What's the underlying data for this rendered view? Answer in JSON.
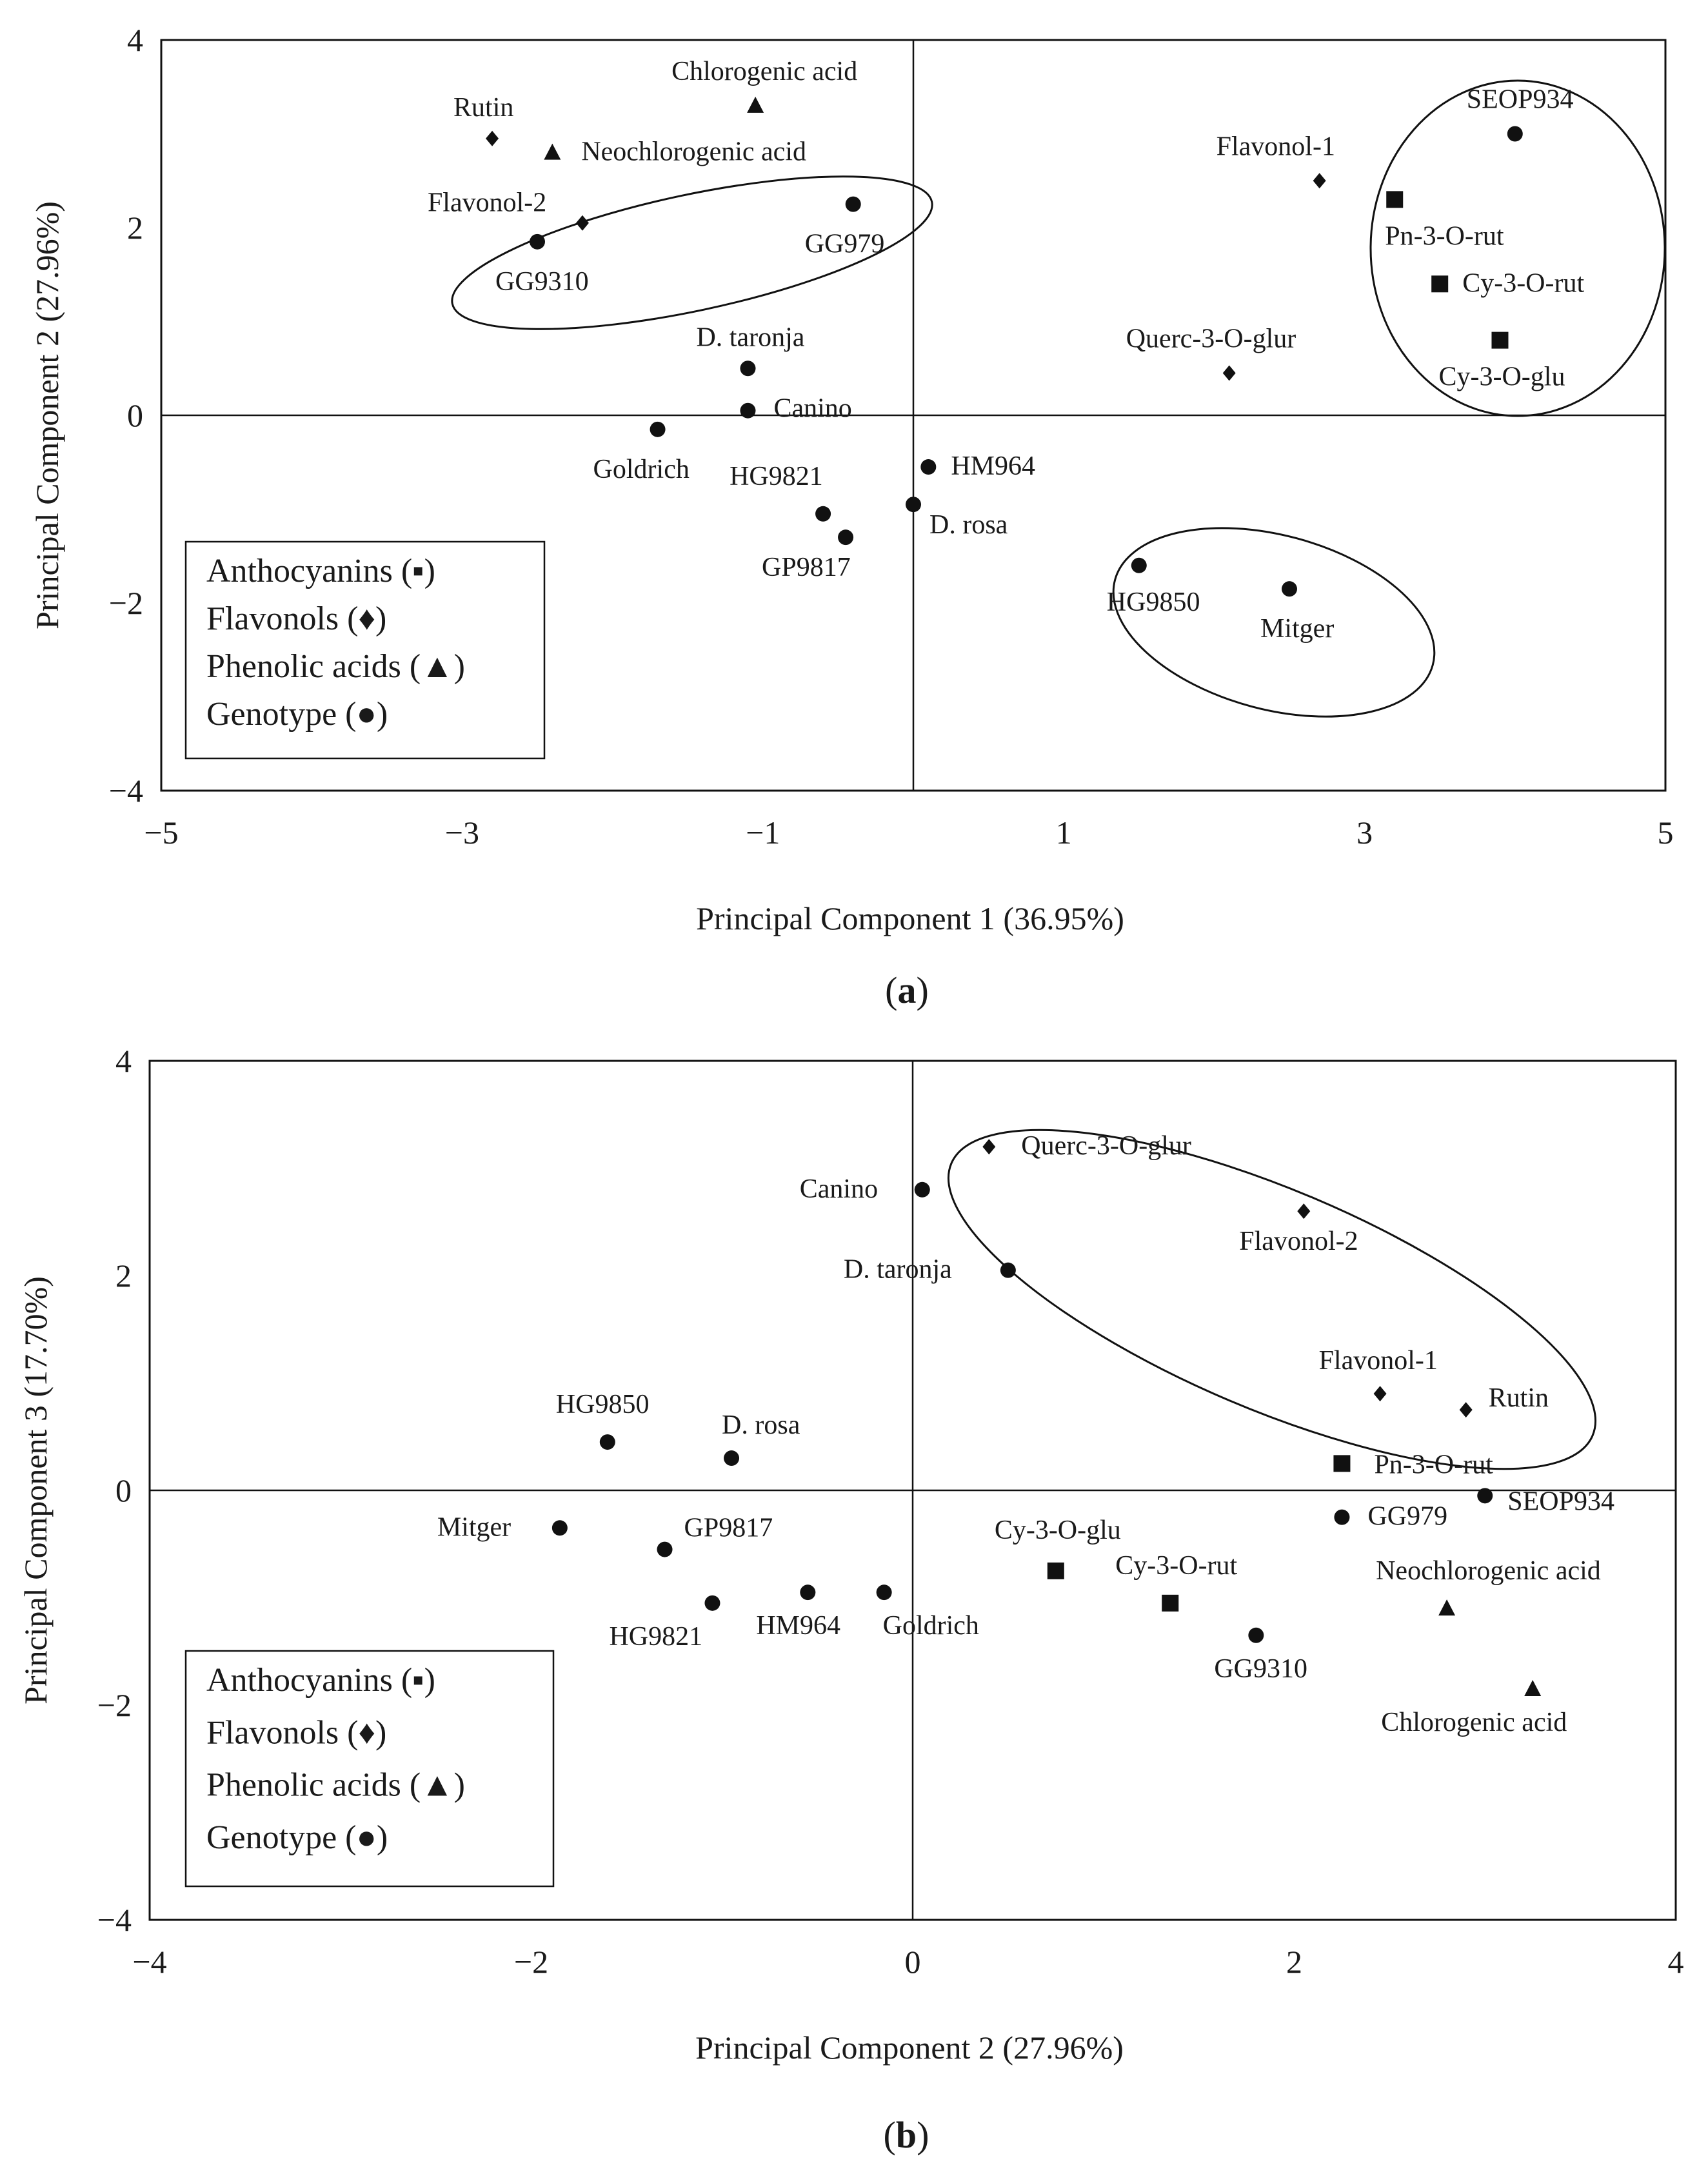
{
  "chart_data": [
    {
      "type": "scatter",
      "caption": "(a)",
      "caption_letter": "a",
      "xlabel": "Principal Component 1 (36.95%)",
      "ylabel": "Principal Component 2 (27.96%)",
      "xlim": [
        -5,
        5
      ],
      "ylim": [
        -4,
        4
      ],
      "xticks": [
        -5,
        -3,
        -1,
        1,
        3,
        5
      ],
      "yticks": [
        -4,
        -2,
        0,
        2,
        4
      ],
      "legend": [
        {
          "text": "Anthocyanins (▪)"
        },
        {
          "text": "Flavonols (♦)"
        },
        {
          "text": "Phenolic acids (▲)"
        },
        {
          "text": "Genotype (●)"
        }
      ],
      "points": [
        {
          "label": "Rutin",
          "group": "flavonol",
          "x": -2.8,
          "y": 2.95
        },
        {
          "label": "Chlorogenic acid",
          "group": "phenolic",
          "x": -1.05,
          "y": 3.3
        },
        {
          "label": "Neochlorogenic acid",
          "group": "phenolic",
          "x": -2.4,
          "y": 2.8
        },
        {
          "label": "Flavonol-2",
          "group": "flavonol",
          "x": -2.2,
          "y": 2.05
        },
        {
          "label": "GG9310",
          "group": "genotype",
          "x": -2.5,
          "y": 1.85
        },
        {
          "label": "GG979",
          "group": "genotype",
          "x": -0.4,
          "y": 2.25
        },
        {
          "label": "D. taronja",
          "group": "genotype",
          "x": -1.1,
          "y": 0.5
        },
        {
          "label": "Canino",
          "group": "genotype",
          "x": -1.1,
          "y": 0.05
        },
        {
          "label": "Goldrich",
          "group": "genotype",
          "x": -1.7,
          "y": -0.15
        },
        {
          "label": "HM964",
          "group": "genotype",
          "x": 0.1,
          "y": -0.55
        },
        {
          "label": "HG9821",
          "group": "genotype",
          "x": -0.6,
          "y": -1.05
        },
        {
          "label": "GP9817",
          "group": "genotype",
          "x": -0.45,
          "y": -1.3
        },
        {
          "label": "D. rosa",
          "group": "genotype",
          "x": 0.0,
          "y": -0.95
        },
        {
          "label": "HG9850",
          "group": "genotype",
          "x": 1.5,
          "y": -1.6
        },
        {
          "label": "Mitger",
          "group": "genotype",
          "x": 2.5,
          "y": -1.85
        },
        {
          "label": "SEOP934",
          "group": "genotype",
          "x": 4.0,
          "y": 3.0
        },
        {
          "label": "Flavonol-1",
          "group": "flavonol",
          "x": 2.7,
          "y": 2.5
        },
        {
          "label": "Pn-3-O-rut",
          "group": "anthocyanin",
          "x": 3.2,
          "y": 2.3
        },
        {
          "label": "Cy-3-O-rut",
          "group": "anthocyanin",
          "x": 3.5,
          "y": 1.4
        },
        {
          "label": "Cy-3-O-glu",
          "group": "anthocyanin",
          "x": 3.9,
          "y": 0.8
        },
        {
          "label": "Querc-3-O-glur",
          "group": "flavonol",
          "x": 2.1,
          "y": 0.45
        }
      ]
    },
    {
      "type": "scatter",
      "caption": "(b)",
      "caption_letter": "b",
      "xlabel": "Principal Component 2 (27.96%)",
      "ylabel": "Principal Component 3 (17.70%)",
      "xlim": [
        -4,
        4
      ],
      "ylim": [
        -4,
        4
      ],
      "xticks": [
        -4,
        -2,
        0,
        2,
        4
      ],
      "yticks": [
        -4,
        -2,
        0,
        2,
        4
      ],
      "legend": [
        {
          "text": "Anthocyanins (▪)"
        },
        {
          "text": "Flavonols (♦)"
        },
        {
          "text": "Phenolic acids (▲)"
        },
        {
          "text": "Genotype (●)"
        }
      ],
      "points": [
        {
          "label": "Querc-3-O-glur",
          "group": "flavonol",
          "x": 0.4,
          "y": 3.2
        },
        {
          "label": "Canino",
          "group": "genotype",
          "x": 0.05,
          "y": 2.8
        },
        {
          "label": "Flavonol-2",
          "group": "flavonol",
          "x": 2.05,
          "y": 2.6
        },
        {
          "label": "D. taronja",
          "group": "genotype",
          "x": 0.5,
          "y": 2.05
        },
        {
          "label": "Flavonol-1",
          "group": "flavonol",
          "x": 2.45,
          "y": 0.9
        },
        {
          "label": "Rutin",
          "group": "flavonol",
          "x": 2.9,
          "y": 0.75
        },
        {
          "label": "HG9850",
          "group": "genotype",
          "x": -1.6,
          "y": 0.45
        },
        {
          "label": "D. rosa",
          "group": "genotype",
          "x": -0.95,
          "y": 0.3
        },
        {
          "label": "Pn-3-O-rut",
          "group": "anthocyanin",
          "x": 2.25,
          "y": 0.25
        },
        {
          "label": "SEOP934",
          "group": "genotype",
          "x": 3.0,
          "y": -0.05
        },
        {
          "label": "Mitger",
          "group": "genotype",
          "x": -1.85,
          "y": -0.35
        },
        {
          "label": "GG979",
          "group": "genotype",
          "x": 2.25,
          "y": -0.25
        },
        {
          "label": "GP9817",
          "group": "genotype",
          "x": -1.3,
          "y": -0.55
        },
        {
          "label": "Cy-3-O-glu",
          "group": "anthocyanin",
          "x": 0.75,
          "y": -0.75
        },
        {
          "label": "HM964",
          "group": "genotype",
          "x": -0.55,
          "y": -0.95
        },
        {
          "label": "Goldrich",
          "group": "genotype",
          "x": -0.15,
          "y": -0.95
        },
        {
          "label": "HG9821",
          "group": "genotype",
          "x": -1.05,
          "y": -1.05
        },
        {
          "label": "Cy-3-O-rut",
          "group": "anthocyanin",
          "x": 1.35,
          "y": -1.05
        },
        {
          "label": "Neochlorogenic acid",
          "group": "phenolic",
          "x": 2.8,
          "y": -1.1
        },
        {
          "label": "GG9310",
          "group": "genotype",
          "x": 1.8,
          "y": -1.35
        },
        {
          "label": "Chlorogenic acid",
          "group": "phenolic",
          "x": 3.25,
          "y": -1.85
        }
      ]
    }
  ]
}
